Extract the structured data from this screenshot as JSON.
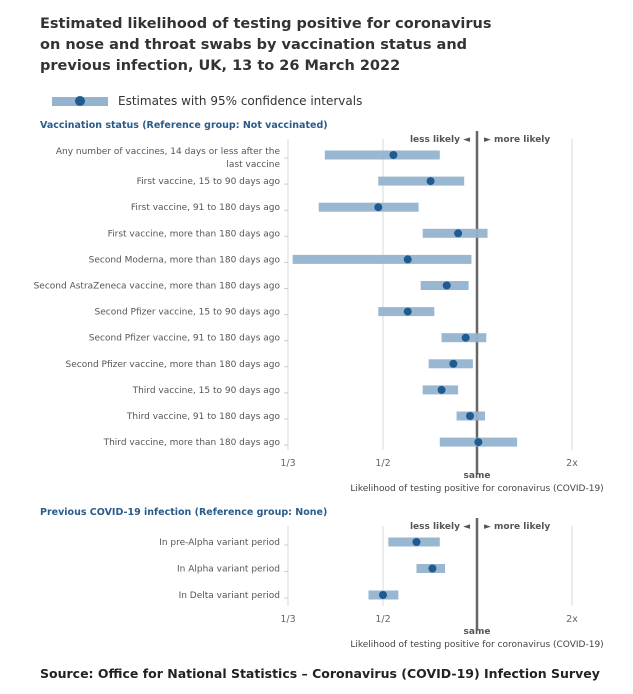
{
  "title": "Estimated likelihood of testing positive for coronavirus on nose and throat swabs by vaccination status and previous infection, UK, 13 to 26 March 2022",
  "legend": {
    "label": "Estimates with 95% confidence intervals"
  },
  "source": "Source: Office for National Statistics – Coronavirus (COVID-19) Infection Survey",
  "colors": {
    "interval": "#94b3cf",
    "estimate": "#1f5a91",
    "reference_line": "#666666",
    "section_header": "#2b5b8a"
  },
  "chart_data": [
    {
      "type": "forest",
      "title": "Vaccination status (Reference group: Not vaccinated)",
      "xscale": "log",
      "xticks": [
        {
          "value": 0.3333,
          "label": "1/3"
        },
        {
          "value": 0.5,
          "label": "1/2"
        },
        {
          "value": 1,
          "label": "same"
        },
        {
          "value": 2,
          "label": "2x"
        }
      ],
      "xlabel": "Likelihood of testing positive for coronavirus (COVID-19)",
      "direction_labels": {
        "left": "less likely ◄",
        "right": "► more likely"
      },
      "rows": [
        {
          "label": "Any number of vaccines, 14 days or less after the last vaccine",
          "estimate": 0.54,
          "lower": 0.39,
          "upper": 0.76
        },
        {
          "label": "First vaccine, 15 to 90 days ago",
          "estimate": 0.71,
          "lower": 0.49,
          "upper": 0.91
        },
        {
          "label": "First vaccine, 91 to 180 days ago",
          "estimate": 0.49,
          "lower": 0.38,
          "upper": 0.65
        },
        {
          "label": "First vaccine, more than 180 days ago",
          "estimate": 0.87,
          "lower": 0.67,
          "upper": 1.08
        },
        {
          "label": "Second Moderna, more than 180 days ago",
          "estimate": 0.6,
          "lower": 0.34,
          "upper": 0.96
        },
        {
          "label": "Second AstraZeneca vaccine, more than 180 days ago",
          "estimate": 0.8,
          "lower": 0.66,
          "upper": 0.94
        },
        {
          "label": "Second Pfizer vaccine, 15 to 90 days ago",
          "estimate": 0.6,
          "lower": 0.49,
          "upper": 0.73
        },
        {
          "label": "Second Pfizer vaccine, 91 to 180 days ago",
          "estimate": 0.92,
          "lower": 0.77,
          "upper": 1.07
        },
        {
          "label": "Second Pfizer vaccine, more than 180 days ago",
          "estimate": 0.84,
          "lower": 0.7,
          "upper": 0.97
        },
        {
          "label": "Third vaccine, 15 to 90 days ago",
          "estimate": 0.77,
          "lower": 0.67,
          "upper": 0.87
        },
        {
          "label": "Third vaccine, 91 to 180 days ago",
          "estimate": 0.95,
          "lower": 0.86,
          "upper": 1.06
        },
        {
          "label": "Third vaccine, more than 180 days ago",
          "estimate": 1.01,
          "lower": 0.76,
          "upper": 1.34
        }
      ]
    },
    {
      "type": "forest",
      "title": "Previous COVID-19 infection (Reference group: None)",
      "xscale": "log",
      "xticks": [
        {
          "value": 0.3333,
          "label": "1/3"
        },
        {
          "value": 0.5,
          "label": "1/2"
        },
        {
          "value": 1,
          "label": "same"
        },
        {
          "value": 2,
          "label": "2x"
        }
      ],
      "xlabel": "Likelihood of testing positive for coronavirus (COVID-19)",
      "direction_labels": {
        "left": "less likely ◄",
        "right": "► more likely"
      },
      "rows": [
        {
          "label": "In pre-Alpha variant period",
          "estimate": 0.64,
          "lower": 0.52,
          "upper": 0.76
        },
        {
          "label": "In Alpha variant period",
          "estimate": 0.72,
          "lower": 0.64,
          "upper": 0.79
        },
        {
          "label": "In Delta variant period",
          "estimate": 0.5,
          "lower": 0.47,
          "upper": 0.56
        }
      ]
    }
  ]
}
